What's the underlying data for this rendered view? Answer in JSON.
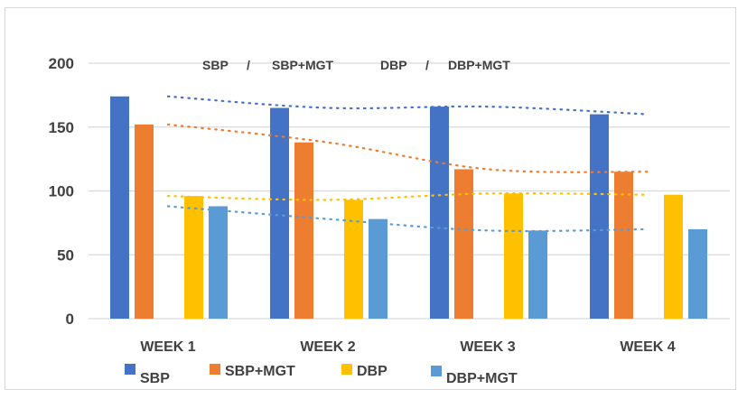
{
  "chart_data": {
    "type": "bar",
    "title": "",
    "subtitle_parts": [
      "SBP",
      "/",
      "SBP+MGT",
      "DBP",
      "/",
      "DBP+MGT"
    ],
    "xlabel": "",
    "ylabel": "",
    "categories": [
      "WEEK 1",
      "WEEK 2",
      "WEEK 3",
      "WEEK 4"
    ],
    "ylim": [
      0,
      200
    ],
    "yticks": [
      "0",
      "50",
      "100",
      "150",
      "200"
    ],
    "ytick_values": [
      0,
      50,
      100,
      150,
      200
    ],
    "grid": true,
    "legend_position": "bottom",
    "series": [
      {
        "name": "SBP",
        "color": "#4472c4",
        "values": [
          174,
          165,
          166,
          160
        ],
        "trendline": "polynomial-dotted"
      },
      {
        "name": "SBP+MGT",
        "color": "#ed7d31",
        "values": [
          152,
          138,
          117,
          115
        ],
        "trendline": "polynomial-dotted"
      },
      {
        "name": "DBP",
        "color": "#ffc000",
        "values": [
          96,
          93,
          98,
          97
        ],
        "trendline": "polynomial-dotted"
      },
      {
        "name": "DBP+MGT",
        "color": "#5b9bd5",
        "values": [
          88,
          78,
          69,
          70
        ],
        "trendline": "polynomial-dotted"
      }
    ]
  }
}
